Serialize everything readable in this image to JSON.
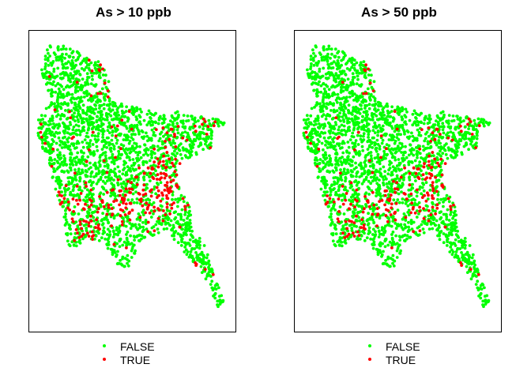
{
  "panels": [
    {
      "title": "As > 10 ppb",
      "threshold_ppb": 10
    },
    {
      "title": "As > 50 ppb",
      "threshold_ppb": 50
    }
  ],
  "legend": {
    "items": [
      {
        "label": "FALSE",
        "color": "#00ff00"
      },
      {
        "label": "TRUE",
        "color": "#ff0000"
      }
    ]
  },
  "colors": {
    "false": "#00ff00",
    "true": "#ff0000"
  }
}
